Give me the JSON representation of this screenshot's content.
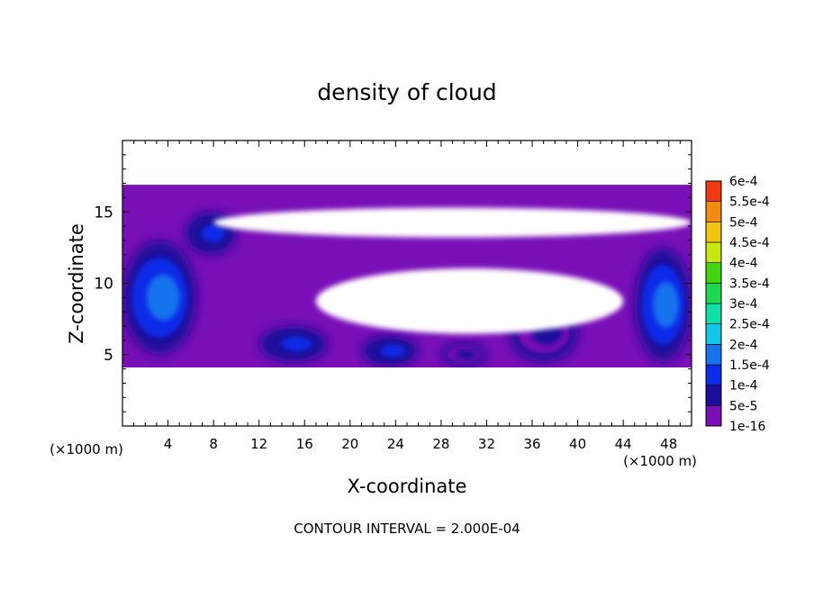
{
  "chart_data": {
    "type": "heatmap",
    "title": "density of cloud",
    "xlabel": "X-coordinate",
    "ylabel": "Z-coordinate",
    "x_unit_label": "(×1000 m)",
    "x_unit_label_right": "(×1000 m)",
    "xlim": [
      0,
      50
    ],
    "ylim": [
      0,
      20
    ],
    "x_ticks": [
      4,
      8,
      12,
      16,
      20,
      24,
      28,
      32,
      36,
      40,
      44,
      48
    ],
    "y_ticks": [
      5,
      10,
      15
    ],
    "footer": "CONTOUR INTERVAL = 2.000E-04",
    "colorbar": {
      "labels": [
        "1e-16",
        "5e-5",
        "1e-4",
        "1.5e-4",
        "2e-4",
        "2.5e-4",
        "3e-4",
        "3.5e-4",
        "4e-4",
        "4.5e-4",
        "5e-4",
        "5.5e-4",
        "6e-4"
      ],
      "colors": [
        "#7a0fb8",
        "#1b0e9a",
        "#0a2be8",
        "#1873ee",
        "#12c7e8",
        "#10e0a8",
        "#1ed852",
        "#44d410",
        "#c8e610",
        "#f2c412",
        "#f08a10",
        "#f03a14",
        "#f07a80"
      ]
    },
    "cloud_region": {
      "z_range": [
        4.1,
        16.9
      ],
      "clear_patches": [
        {
          "x": [
            8,
            50
          ],
          "z": [
            13.0,
            15.5
          ]
        },
        {
          "x": [
            17,
            44
          ],
          "z": [
            6.0,
            11.5
          ]
        },
        {
          "x": [
            0,
            50
          ],
          "z": [
            0,
            4.1
          ]
        },
        {
          "x": [
            0,
            50
          ],
          "z": [
            17,
            20
          ]
        }
      ],
      "dense_patches": [
        {
          "x": [
            0,
            6.5
          ],
          "z": [
            5.0,
            13.0
          ],
          "peak": 0.00015
        },
        {
          "x": [
            45,
            50
          ],
          "z": [
            4.5,
            12.5
          ],
          "peak": 0.00015
        },
        {
          "x": [
            5.5,
            10
          ],
          "z": [
            12,
            15
          ],
          "peak": 0.0001
        },
        {
          "x": [
            12,
            18
          ],
          "z": [
            4.5,
            7
          ],
          "peak": 0.0001
        },
        {
          "x": [
            21,
            26
          ],
          "z": [
            4.2,
            6.3
          ],
          "peak": 0.0001
        },
        {
          "x": [
            28,
            32
          ],
          "z": [
            4.2,
            5.8
          ],
          "peak": 5e-05
        },
        {
          "x": [
            34,
            40
          ],
          "z": [
            4.5,
            8.5
          ],
          "peak": 5e-05
        }
      ]
    }
  }
}
